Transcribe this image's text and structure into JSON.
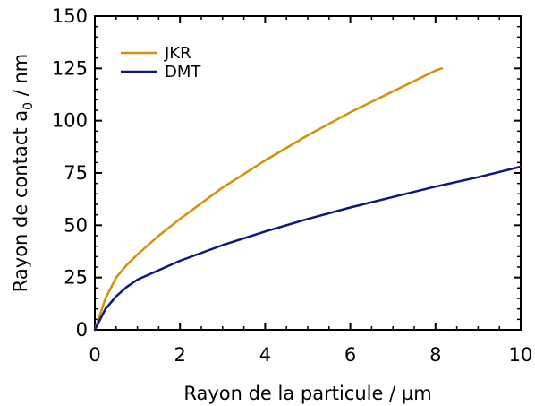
{
  "chart_data": {
    "type": "line",
    "title": "",
    "xlabel": "Rayon de la particule / µm",
    "ylabel_main": "Rayon de contact a",
    "ylabel_sub": "0",
    "ylabel_unit": " / nm",
    "xlim": [
      0,
      10
    ],
    "ylim": [
      0,
      150
    ],
    "xticks": [
      "0",
      "2",
      "4",
      "6",
      "8",
      "10"
    ],
    "yticks": [
      "0",
      "25",
      "50",
      "75",
      "100",
      "125",
      "150"
    ],
    "grid": false,
    "legend": "top-left",
    "series": [
      {
        "name": "JKR",
        "color": "#d4900a",
        "x": [
          0,
          0.25,
          0.5,
          0.75,
          1,
          1.5,
          2,
          3,
          4,
          5,
          6,
          7,
          8,
          8.15
        ],
        "y": [
          0,
          15,
          25,
          31,
          36,
          45,
          53,
          68,
          81,
          93,
          104,
          114,
          124,
          125
        ]
      },
      {
        "name": "DMT",
        "color": "#0e1680",
        "x": [
          0,
          0.25,
          0.5,
          0.75,
          1,
          1.5,
          2,
          3,
          4,
          5,
          6,
          7,
          8,
          9,
          10
        ],
        "y": [
          0,
          10,
          16,
          20.5,
          24,
          28.5,
          33,
          40.5,
          47,
          53,
          58.5,
          63.5,
          68.5,
          73,
          78
        ]
      }
    ]
  }
}
